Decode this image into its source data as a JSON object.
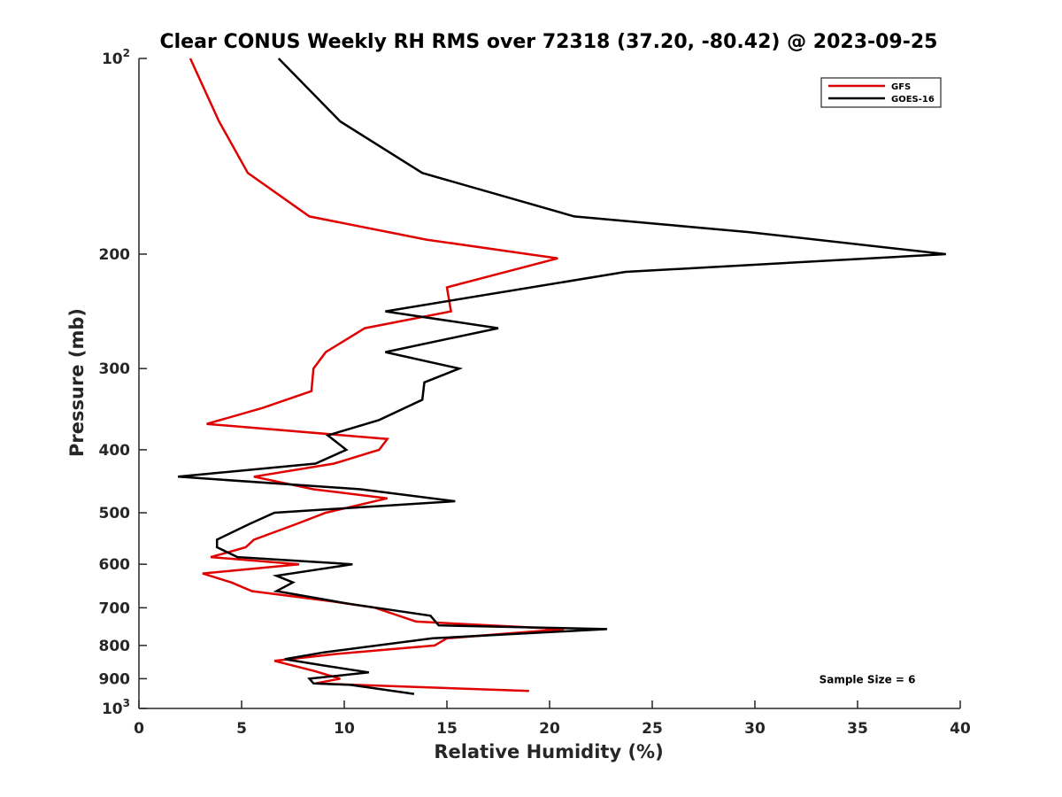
{
  "chart_data": {
    "type": "line",
    "title": "Clear CONUS Weekly RH RMS over 72318 (37.20, -80.42) @ 2023-09-25",
    "xlabel": "Relative Humidity (%)",
    "ylabel": "Pressure (mb)",
    "xlim": [
      0,
      40
    ],
    "ylim": [
      100,
      1000
    ],
    "y_scale": "log",
    "y_reversed": true,
    "grid": false,
    "legend_position": "top-right",
    "x_ticks": [
      "0",
      "5",
      "10",
      "15",
      "20",
      "25",
      "30",
      "35",
      "40"
    ],
    "y_ticks": [
      {
        "value": 100,
        "base": "10",
        "exp": "2"
      },
      {
        "value": 200,
        "label": "200"
      },
      {
        "value": 300,
        "label": "300"
      },
      {
        "value": 400,
        "label": "400"
      },
      {
        "value": 500,
        "label": "500"
      },
      {
        "value": 600,
        "label": "600"
      },
      {
        "value": 700,
        "label": "700"
      },
      {
        "value": 800,
        "label": "800"
      },
      {
        "value": 900,
        "label": "900"
      },
      {
        "value": 1000,
        "base": "10",
        "exp": "3"
      }
    ],
    "series": [
      {
        "name": "GFS",
        "color": "#e00000",
        "points": [
          [
            2.5,
            100
          ],
          [
            3.9,
            125
          ],
          [
            5.3,
            150
          ],
          [
            8.3,
            175
          ],
          [
            14.0,
            190
          ],
          [
            20.4,
            203
          ],
          [
            15.0,
            225
          ],
          [
            15.2,
            245
          ],
          [
            11.0,
            260
          ],
          [
            9.1,
            283
          ],
          [
            8.5,
            300
          ],
          [
            8.4,
            325
          ],
          [
            6.0,
            345
          ],
          [
            3.3,
            365
          ],
          [
            12.1,
            385
          ],
          [
            11.7,
            400
          ],
          [
            9.5,
            420
          ],
          [
            5.6,
            440
          ],
          [
            8.5,
            460
          ],
          [
            12.1,
            475
          ],
          [
            9.1,
            500
          ],
          [
            7.7,
            520
          ],
          [
            5.6,
            550
          ],
          [
            5.2,
            565
          ],
          [
            3.5,
            585
          ],
          [
            7.8,
            600
          ],
          [
            3.1,
            620
          ],
          [
            4.5,
            640
          ],
          [
            5.5,
            660
          ],
          [
            9.5,
            685
          ],
          [
            11.5,
            700
          ],
          [
            13.5,
            735
          ],
          [
            20.7,
            755
          ],
          [
            15.0,
            780
          ],
          [
            14.4,
            800
          ],
          [
            9.5,
            825
          ],
          [
            6.6,
            845
          ],
          [
            8.5,
            875
          ],
          [
            9.8,
            900
          ],
          [
            8.6,
            915
          ],
          [
            19.0,
            940
          ]
        ]
      },
      {
        "name": "GOES-16",
        "color": "#000000",
        "points": [
          [
            6.8,
            100
          ],
          [
            9.8,
            125
          ],
          [
            13.8,
            150
          ],
          [
            21.2,
            175
          ],
          [
            29.7,
            185
          ],
          [
            39.3,
            200
          ],
          [
            23.7,
            213
          ],
          [
            12.0,
            245
          ],
          [
            17.5,
            260
          ],
          [
            12.0,
            283
          ],
          [
            15.6,
            300
          ],
          [
            13.9,
            315
          ],
          [
            13.8,
            335
          ],
          [
            11.7,
            360
          ],
          [
            9.2,
            380
          ],
          [
            10.1,
            400
          ],
          [
            8.6,
            420
          ],
          [
            1.9,
            440
          ],
          [
            10.8,
            460
          ],
          [
            15.4,
            480
          ],
          [
            6.6,
            500
          ],
          [
            5.4,
            520
          ],
          [
            3.8,
            550
          ],
          [
            3.8,
            565
          ],
          [
            4.8,
            585
          ],
          [
            10.4,
            600
          ],
          [
            6.7,
            625
          ],
          [
            7.5,
            640
          ],
          [
            6.7,
            660
          ],
          [
            10.2,
            690
          ],
          [
            14.2,
            720
          ],
          [
            14.6,
            745
          ],
          [
            22.8,
            755
          ],
          [
            14.3,
            780
          ],
          [
            9.0,
            820
          ],
          [
            7.1,
            840
          ],
          [
            9.1,
            860
          ],
          [
            11.2,
            880
          ],
          [
            8.3,
            900
          ],
          [
            8.5,
            915
          ],
          [
            10.3,
            920
          ],
          [
            13.4,
            950
          ]
        ]
      }
    ],
    "annotations": [
      {
        "text": "Sample Size = 6",
        "x": 37.2,
        "y": 900
      }
    ]
  }
}
